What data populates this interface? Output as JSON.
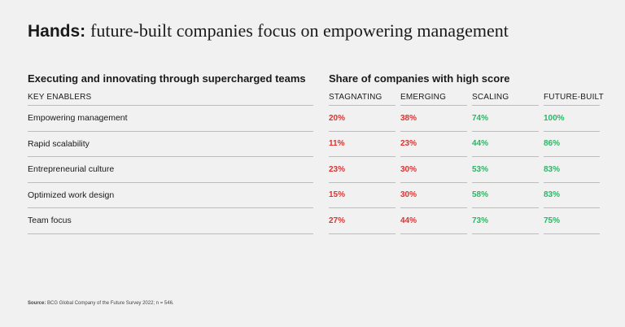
{
  "title": {
    "bold": "Hands:",
    "rest": "future-built companies focus on empowering management"
  },
  "chart_data": {
    "type": "table",
    "left_heading": "Executing and innovating through supercharged teams",
    "right_heading": "Share of companies with high score",
    "row_header": "KEY ENABLERS",
    "columns": [
      "STAGNATING",
      "EMERGING",
      "SCALING",
      "FUTURE-BUILT"
    ],
    "column_colors": [
      "#e0312f",
      "#e0312f",
      "#29b765",
      "#29b765"
    ],
    "rows": [
      {
        "label": "Empowering management",
        "values": [
          "20%",
          "38%",
          "74%",
          "100%"
        ]
      },
      {
        "label": "Rapid scalability",
        "values": [
          "11%",
          "23%",
          "44%",
          "86%"
        ]
      },
      {
        "label": "Entrepreneurial culture",
        "values": [
          "23%",
          "30%",
          "53%",
          "83%"
        ]
      },
      {
        "label": "Optimized work design",
        "values": [
          "15%",
          "30%",
          "58%",
          "83%"
        ]
      },
      {
        "label": "Team focus",
        "values": [
          "27%",
          "44%",
          "73%",
          "75%"
        ]
      }
    ]
  },
  "source": {
    "label": "Source:",
    "text": "BCG Global Company of the Future Survey 2022; n = 546."
  }
}
